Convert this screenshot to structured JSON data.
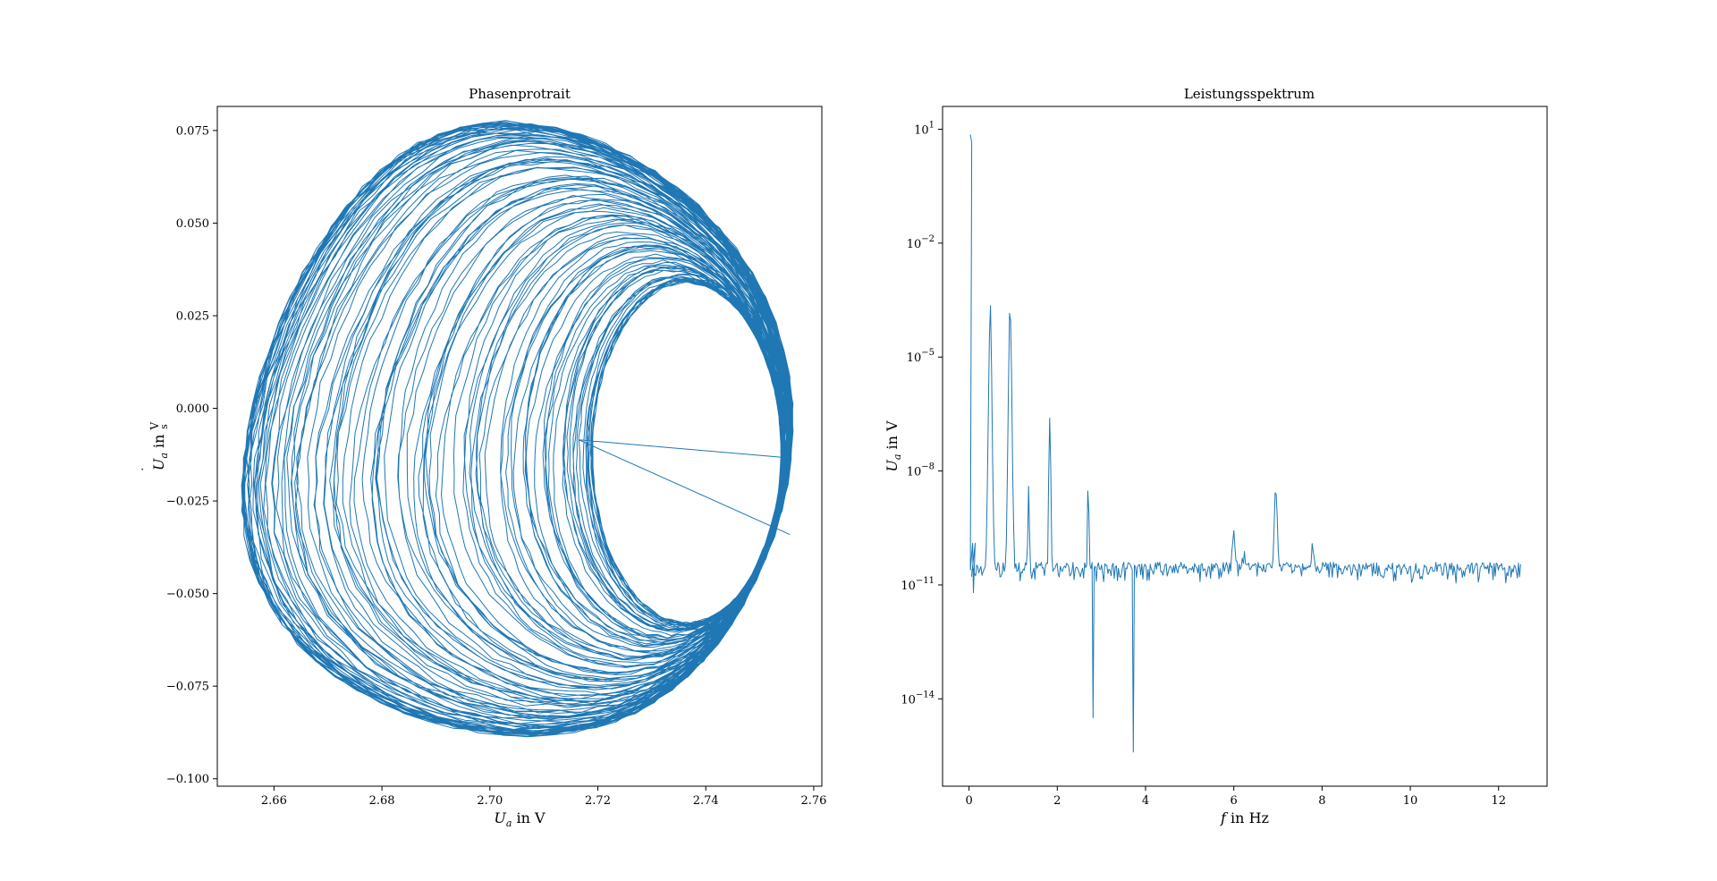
{
  "chart_data": [
    {
      "type": "line",
      "title": "Phasenprotrait",
      "xlabel": "U_a in V",
      "ylabel": "U̇_a in V/s",
      "xlim": [
        2.6495,
        2.7615
      ],
      "ylim": [
        -0.102,
        0.0815
      ],
      "xticks": [
        2.66,
        2.68,
        2.7,
        2.72,
        2.74,
        2.76
      ],
      "xtick_labels": [
        "2.66",
        "2.68",
        "2.70",
        "2.72",
        "2.74",
        "2.76"
      ],
      "yticks": [
        0.075,
        0.05,
        0.025,
        0.0,
        -0.025,
        -0.05,
        -0.075,
        -0.1
      ],
      "ytick_labels": [
        "0.075",
        "0.050",
        "0.025",
        "0.000",
        "−0.025",
        "−0.050",
        "−0.075",
        "−0.100"
      ],
      "grid": false,
      "series": [
        {
          "color": "#1f77b4",
          "description_of_shape": "phase portrait trajectory: many nested loops spiralling between an outer orbit and an inner orbit",
          "outer_orbit": {
            "cx": 2.705,
            "cy": -0.0095,
            "rx": 0.0505,
            "ry": 0.0825
          },
          "inner_orbit": {
            "cx": 2.7365,
            "cy": -0.012,
            "rx": 0.0175,
            "ry": 0.046
          },
          "x_range": [
            2.654,
            2.756
          ],
          "y_range": [
            -0.093,
            0.073
          ],
          "loops": 110
        }
      ]
    },
    {
      "type": "line",
      "title": "Leistungsspektrum",
      "xlabel": "f in Hz",
      "ylabel": "U_a in V",
      "yscale": "log",
      "xlim": [
        -0.6,
        13.1
      ],
      "ylim_log10": [
        -16.3,
        1.6
      ],
      "xticks": [
        0,
        2,
        4,
        6,
        8,
        10,
        12
      ],
      "xtick_labels": [
        "0",
        "2",
        "4",
        "6",
        "8",
        "10",
        "12"
      ],
      "yticks_log10": [
        1,
        -2,
        -5,
        -8,
        -11,
        -14
      ],
      "ytick_labels": [
        [
          "10",
          "1"
        ],
        [
          "10",
          "−2"
        ],
        [
          "10",
          "−5"
        ],
        [
          "10",
          "−8"
        ],
        [
          "10",
          "−11"
        ],
        [
          "10",
          "−14"
        ]
      ],
      "grid": false,
      "series": [
        {
          "color": "#1f77b4",
          "f_range": [
            0.03,
            12.5
          ],
          "noise_floor_log10": -11.8,
          "peaks": [
            {
              "f": 0.03,
              "log10_value": 0.85
            },
            {
              "f": 0.48,
              "log10_value": -3.5
            },
            {
              "f": 0.93,
              "log10_value": -3.4
            },
            {
              "f": 1.35,
              "log10_value": -8.4
            },
            {
              "f": 1.83,
              "log10_value": -6.6
            },
            {
              "f": 2.7,
              "log10_value": -8.3
            },
            {
              "f": 3.6,
              "log10_value": -10.5
            },
            {
              "f": 6.0,
              "log10_value": -9.5
            },
            {
              "f": 6.95,
              "log10_value": -8.0
            },
            {
              "f": 7.8,
              "log10_value": -9.7
            }
          ],
          "dips": [
            {
              "f": 2.8,
              "log10_value": -14.5
            },
            {
              "f": 3.72,
              "log10_value": -15.4
            }
          ]
        }
      ]
    }
  ]
}
